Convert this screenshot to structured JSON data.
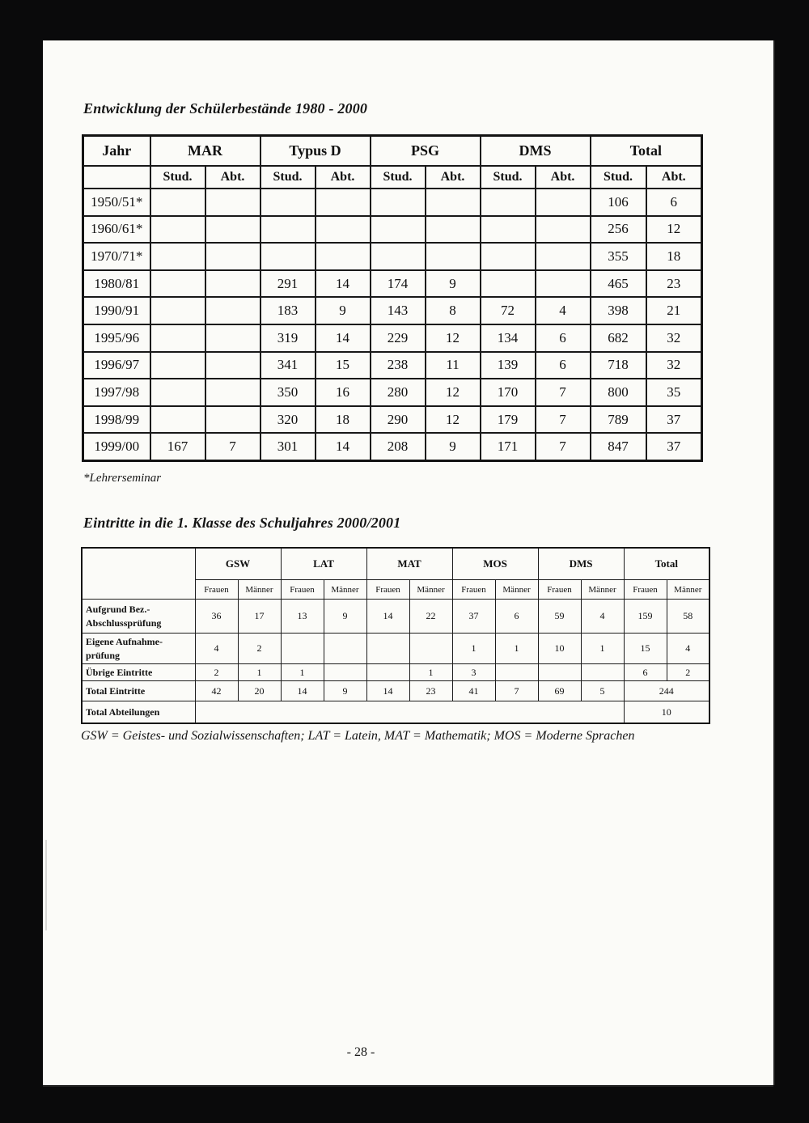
{
  "page": {
    "number_label": "- 28 -"
  },
  "table1": {
    "title": "Entwicklung der Schülerbestände 1980 - 2000",
    "jahr_header": "Jahr",
    "col_groups": [
      "MAR",
      "Typus D",
      "PSG",
      "DMS",
      "Total"
    ],
    "sub_headers": [
      "Stud.",
      "Abt."
    ],
    "rows": [
      {
        "jahr": "1950/51*",
        "cells": [
          "",
          "",
          "",
          "",
          "",
          "",
          "",
          "",
          "106",
          "6"
        ]
      },
      {
        "jahr": "1960/61*",
        "cells": [
          "",
          "",
          "",
          "",
          "",
          "",
          "",
          "",
          "256",
          "12"
        ]
      },
      {
        "jahr": "1970/71*",
        "cells": [
          "",
          "",
          "",
          "",
          "",
          "",
          "",
          "",
          "355",
          "18"
        ]
      },
      {
        "jahr": "1980/81",
        "cells": [
          "",
          "",
          "291",
          "14",
          "174",
          "9",
          "",
          "",
          "465",
          "23"
        ]
      },
      {
        "jahr": "1990/91",
        "cells": [
          "",
          "",
          "183",
          "9",
          "143",
          "8",
          "72",
          "4",
          "398",
          "21"
        ]
      },
      {
        "jahr": "1995/96",
        "cells": [
          "",
          "",
          "319",
          "14",
          "229",
          "12",
          "134",
          "6",
          "682",
          "32"
        ]
      },
      {
        "jahr": "1996/97",
        "cells": [
          "",
          "",
          "341",
          "15",
          "238",
          "11",
          "139",
          "6",
          "718",
          "32"
        ]
      },
      {
        "jahr": "1997/98",
        "cells": [
          "",
          "",
          "350",
          "16",
          "280",
          "12",
          "170",
          "7",
          "800",
          "35"
        ]
      },
      {
        "jahr": "1998/99",
        "cells": [
          "",
          "",
          "320",
          "18",
          "290",
          "12",
          "179",
          "7",
          "789",
          "37"
        ]
      },
      {
        "jahr": "1999/00",
        "cells": [
          "167",
          "7",
          "301",
          "14",
          "208",
          "9",
          "171",
          "7",
          "847",
          "37"
        ]
      }
    ],
    "footnote": "*Lehrerseminar"
  },
  "table2": {
    "title": "Eintritte in die 1. Klasse des Schuljahres 2000/2001",
    "col_groups": [
      "GSW",
      "LAT",
      "MAT",
      "MOS",
      "DMS",
      "Total"
    ],
    "sub_headers": [
      "Frauen",
      "Männer"
    ],
    "rows": [
      {
        "label_lines": [
          "Aufgrund Bez.-",
          "Abschlussprüfung"
        ],
        "values": [
          "36",
          "17",
          "13",
          "9",
          "14",
          "22",
          "37",
          "6",
          "59",
          "4",
          "159",
          "58"
        ]
      },
      {
        "label_lines": [
          "Eigene Aufnahme-",
          "prüfung"
        ],
        "values": [
          "4",
          "2",
          "",
          "",
          "",
          "",
          "1",
          "1",
          "10",
          "1",
          "15",
          "4"
        ]
      },
      {
        "label_lines": [
          "Übrige Eintritte"
        ],
        "values": [
          "2",
          "1",
          "1",
          "",
          "",
          "1",
          "3",
          "",
          "",
          "",
          "6",
          "2"
        ]
      },
      {
        "label_lines": [
          "Total Eintritte"
        ],
        "values": [
          "42",
          "20",
          "14",
          "9",
          "14",
          "23",
          "41",
          "7",
          "69",
          "5"
        ],
        "total_merged": "244"
      },
      {
        "label_lines": [
          "Total Abteilungen"
        ],
        "merged_blank": true,
        "total_merged": "10"
      }
    ],
    "footnote": "GSW = Geistes- und Sozialwissenschaften; LAT = Latein, MAT = Mathematik; MOS = Moderne Sprachen"
  }
}
